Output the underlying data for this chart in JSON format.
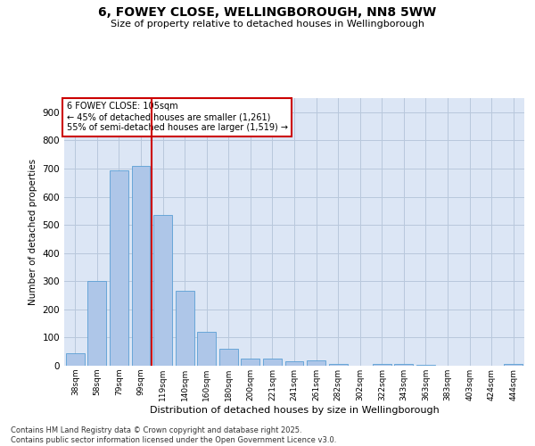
{
  "title_line1": "6, FOWEY CLOSE, WELLINGBOROUGH, NN8 5WW",
  "title_line2": "Size of property relative to detached houses in Wellingborough",
  "xlabel": "Distribution of detached houses by size in Wellingborough",
  "ylabel": "Number of detached properties",
  "categories": [
    "38sqm",
    "58sqm",
    "79sqm",
    "99sqm",
    "119sqm",
    "140sqm",
    "160sqm",
    "180sqm",
    "200sqm",
    "221sqm",
    "241sqm",
    "261sqm",
    "282sqm",
    "302sqm",
    "322sqm",
    "343sqm",
    "363sqm",
    "383sqm",
    "403sqm",
    "424sqm",
    "444sqm"
  ],
  "values": [
    45,
    300,
    695,
    710,
    535,
    265,
    120,
    60,
    25,
    25,
    15,
    18,
    5,
    0,
    7,
    7,
    2,
    0,
    0,
    0,
    5
  ],
  "bar_color": "#aec6e8",
  "bar_edge_color": "#5a9fd4",
  "vline_x_index": 3,
  "vline_color": "#cc0000",
  "annotation_text": "6 FOWEY CLOSE: 105sqm\n← 45% of detached houses are smaller (1,261)\n55% of semi-detached houses are larger (1,519) →",
  "annotation_box_color": "#ffffff",
  "annotation_box_edge": "#cc0000",
  "plot_bg_color": "#dce6f5",
  "background_color": "#ffffff",
  "grid_color": "#b8c8dc",
  "ylim": [
    0,
    950
  ],
  "yticks": [
    0,
    100,
    200,
    300,
    400,
    500,
    600,
    700,
    800,
    900
  ],
  "footer": "Contains HM Land Registry data © Crown copyright and database right 2025.\nContains public sector information licensed under the Open Government Licence v3.0."
}
